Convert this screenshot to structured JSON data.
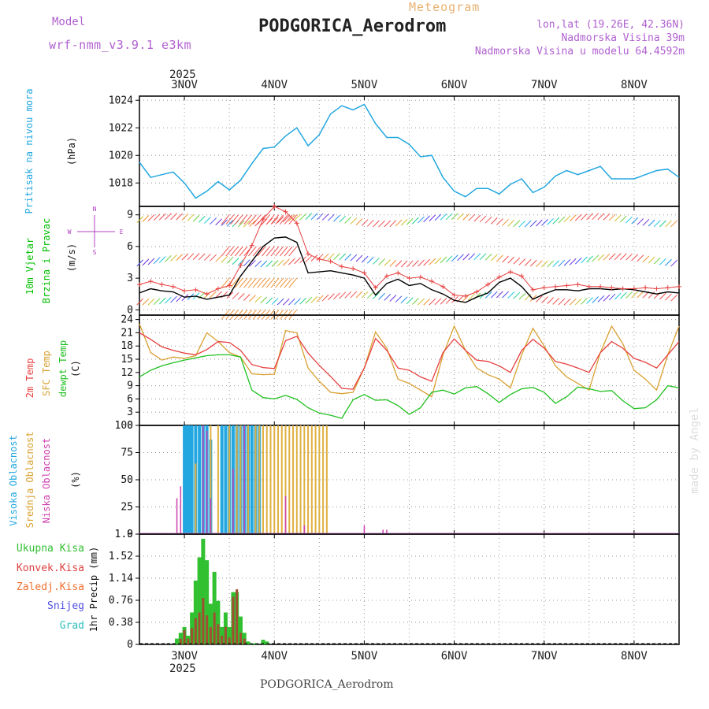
{
  "header": {
    "model_label": "Model",
    "model_name": "wrf-nmm_v3.9.1 e3km",
    "meteogram_label": "Meteogram",
    "station": "PODGORICA_Aerodrom",
    "lonlat": "lon,lat (19.26E, 42.36N)",
    "elevation": "Nadmorska Visina 39m",
    "model_elevation": "Nadmorska Visina u modelu 64.4592m",
    "footer_station": "PODGORICA_Aerodrom",
    "credit": "made by Angel"
  },
  "time_axis": {
    "year": "2025",
    "day_labels": [
      "3NOV",
      "4NOV",
      "5NOV",
      "6NOV",
      "7NOV",
      "8NOV"
    ],
    "x_range_hours": [
      -12,
      132
    ]
  },
  "colors": {
    "pressure": "#22a7e0",
    "wind_label": "#00c000",
    "speed_line": "#000000",
    "temp2m": "#e84040",
    "sfc": "#d9a030",
    "dewpt": "#20c020",
    "high": "#22a7e0",
    "mid": "#e0b040",
    "low": "#d040b0",
    "total": "#30c030",
    "conv": "#e04040",
    "frozen": "#f07030",
    "snow": "#5050e0",
    "grad": "#30c0c0"
  },
  "chart_data": [
    {
      "type": "line",
      "panel": "pressure",
      "ylabel_1": "Pritisak na nivou mora",
      "ylabel_2": "(hPa)",
      "ylim": [
        1016.3,
        1024.3
      ],
      "ticks": [
        1018,
        1020,
        1022,
        1024
      ],
      "series": [
        {
          "name": "Pritisak",
          "x": [
            -12,
            -9,
            -6,
            -3,
            0,
            3,
            6,
            9,
            12,
            15,
            18,
            21,
            24,
            27,
            30,
            33,
            36,
            39,
            42,
            45,
            48,
            51,
            54,
            57,
            60,
            63,
            66,
            69,
            72,
            75,
            78,
            81,
            84,
            87,
            90,
            93,
            96,
            99,
            102,
            105,
            108,
            111,
            114,
            117,
            120,
            123,
            126,
            129,
            132
          ],
          "values": [
            1019.5,
            1018.4,
            1018.6,
            1018.8,
            1018.0,
            1016.9,
            1017.4,
            1018.1,
            1017.5,
            1018.2,
            1019.4,
            1020.5,
            1020.6,
            1021.4,
            1022.0,
            1020.7,
            1021.5,
            1023.0,
            1023.6,
            1023.3,
            1023.7,
            1022.3,
            1021.3,
            1021.3,
            1020.8,
            1019.9,
            1020.0,
            1018.4,
            1017.4,
            1017.0,
            1017.6,
            1017.6,
            1017.2,
            1017.9,
            1018.3,
            1017.3,
            1017.7,
            1018.5,
            1018.9,
            1018.6,
            1018.9,
            1019.2,
            1018.3,
            1018.3,
            1018.3,
            1018.6,
            1018.9,
            1019.0,
            1018.4
          ]
        }
      ]
    },
    {
      "type": "line",
      "panel": "wind",
      "ylabel_1": "10m Vjetar",
      "ylabel_2": "Brzina i Pravac",
      "ylabel_3": "(m/s)",
      "compass": {
        "n": "N",
        "s": "S",
        "e": "E",
        "w": "W"
      },
      "ylim": [
        -0.5,
        9.8
      ],
      "ticks": [
        0,
        3,
        6,
        9
      ],
      "series": [
        {
          "name": "Brzina",
          "x": [
            -12,
            -9,
            -6,
            -3,
            0,
            3,
            6,
            9,
            12,
            15,
            18,
            21,
            24,
            27,
            30,
            33,
            36,
            39,
            42,
            45,
            48,
            51,
            54,
            57,
            60,
            63,
            66,
            69,
            72,
            75,
            78,
            81,
            84,
            87,
            90,
            93,
            96,
            99,
            102,
            105,
            108,
            111,
            114,
            117,
            120,
            123,
            126,
            129,
            132
          ],
          "values": [
            1.6,
            2.0,
            1.8,
            1.7,
            1.2,
            1.3,
            1.0,
            1.2,
            1.4,
            3.2,
            4.6,
            6.0,
            6.8,
            6.9,
            6.4,
            3.5,
            3.6,
            3.7,
            3.5,
            3.3,
            3.0,
            1.4,
            2.5,
            2.9,
            2.3,
            2.5,
            1.9,
            1.5,
            0.9,
            0.7,
            1.2,
            1.6,
            2.6,
            3.0,
            2.2,
            1.0,
            1.5,
            1.9,
            1.9,
            1.8,
            2.0,
            2.0,
            1.9,
            2.0,
            1.9,
            1.7,
            1.5,
            1.7,
            1.6
          ]
        },
        {
          "name": "Udari",
          "x": [
            -12,
            -9,
            -6,
            -3,
            0,
            3,
            6,
            9,
            12,
            15,
            18,
            21,
            24,
            27,
            30,
            33,
            36,
            39,
            42,
            45,
            48,
            51,
            54,
            57,
            60,
            63,
            66,
            69,
            72,
            75,
            78,
            81,
            84,
            87,
            90,
            93,
            96,
            99,
            102,
            105,
            108,
            111,
            114,
            117,
            120,
            123,
            126,
            129,
            132
          ],
          "values": [
            2.4,
            2.7,
            2.4,
            2.2,
            1.8,
            1.9,
            1.5,
            2.0,
            2.3,
            4.2,
            6.1,
            8.6,
            9.8,
            9.3,
            8.2,
            5.3,
            4.8,
            4.6,
            4.1,
            3.9,
            3.5,
            2.1,
            3.2,
            3.5,
            3.0,
            3.1,
            2.7,
            2.2,
            1.4,
            1.3,
            1.7,
            2.4,
            3.1,
            3.6,
            3.2,
            1.9,
            2.1,
            2.2,
            2.3,
            2.4,
            2.2,
            2.2,
            2.1,
            2.0,
            2.0,
            2.1,
            2.0,
            2.1,
            2.2
          ]
        }
      ]
    },
    {
      "type": "line",
      "panel": "temperature",
      "ylabel_1": "2m Temp",
      "ylabel_2": "SFC Temp",
      "ylabel_3": "dewpt Temp",
      "ylabel_4": "(C)",
      "ylim": [
        0,
        25
      ],
      "ticks": [
        0,
        3,
        6,
        9,
        12,
        15,
        18,
        21,
        24
      ],
      "series": [
        {
          "name": "2m Temp",
          "x": [
            -12,
            -9,
            -6,
            -3,
            0,
            3,
            6,
            9,
            12,
            15,
            18,
            21,
            24,
            27,
            30,
            33,
            36,
            39,
            42,
            45,
            48,
            51,
            54,
            57,
            60,
            63,
            66,
            69,
            72,
            75,
            78,
            81,
            84,
            87,
            90,
            93,
            96,
            99,
            102,
            105,
            108,
            111,
            114,
            117,
            120,
            123,
            126,
            129,
            132
          ],
          "values": [
            21.0,
            19.5,
            17.8,
            17.0,
            16.4,
            16.0,
            17.2,
            19.0,
            18.8,
            17.0,
            13.8,
            13.1,
            12.9,
            19.2,
            20.2,
            16.4,
            13.6,
            11.1,
            8.4,
            8.2,
            13.0,
            19.7,
            17.0,
            13.0,
            12.5,
            11.0,
            10.0,
            16.5,
            19.6,
            17.0,
            14.8,
            14.5,
            13.5,
            12.0,
            17.0,
            19.5,
            17.5,
            14.5,
            13.9,
            13.0,
            12.0,
            16.5,
            19.0,
            17.5,
            15.2,
            14.3,
            13.0,
            16.0,
            19.0
          ]
        },
        {
          "name": "SFC Temp",
          "x": [
            -12,
            -9,
            -6,
            -3,
            0,
            3,
            6,
            9,
            12,
            15,
            18,
            21,
            24,
            27,
            30,
            33,
            36,
            39,
            42,
            45,
            48,
            51,
            54,
            57,
            60,
            63,
            66,
            69,
            72,
            75,
            78,
            81,
            84,
            87,
            90,
            93,
            96,
            99,
            102,
            105,
            108,
            111,
            114,
            117,
            120,
            123,
            126,
            129,
            132
          ],
          "values": [
            23.0,
            16.5,
            14.8,
            15.5,
            15.2,
            15.8,
            21.0,
            19.0,
            16.5,
            15.5,
            11.7,
            11.5,
            11.6,
            21.5,
            21.0,
            13.0,
            10.0,
            7.5,
            7.2,
            7.5,
            13.0,
            21.2,
            17.5,
            10.5,
            9.5,
            8.0,
            6.5,
            16.0,
            22.5,
            17.0,
            13.0,
            11.5,
            10.5,
            8.5,
            16.0,
            22.0,
            18.0,
            13.5,
            11.0,
            9.5,
            8.0,
            16.5,
            22.5,
            18.5,
            12.5,
            10.5,
            8.0,
            16.0,
            22.5
          ]
        },
        {
          "name": "dewpt Temp",
          "x": [
            -12,
            -9,
            -6,
            -3,
            0,
            3,
            6,
            9,
            12,
            15,
            18,
            21,
            24,
            27,
            30,
            33,
            36,
            39,
            42,
            45,
            48,
            51,
            54,
            57,
            60,
            63,
            66,
            69,
            72,
            75,
            78,
            81,
            84,
            87,
            90,
            93,
            96,
            99,
            102,
            105,
            108,
            111,
            114,
            117,
            120,
            123,
            126,
            129,
            132
          ],
          "values": [
            11.0,
            12.5,
            13.5,
            14.2,
            14.8,
            15.3,
            15.8,
            16.0,
            16.0,
            15.5,
            8.0,
            6.3,
            6.0,
            6.8,
            5.9,
            4.0,
            2.8,
            2.3,
            1.6,
            5.8,
            7.0,
            5.7,
            5.8,
            4.5,
            2.5,
            4.0,
            7.5,
            8.0,
            7.1,
            8.5,
            8.8,
            7.2,
            5.2,
            7.0,
            8.3,
            8.6,
            7.5,
            5.0,
            6.5,
            8.7,
            8.3,
            7.7,
            7.9,
            5.6,
            3.8,
            4.0,
            5.8,
            9.0,
            8.5
          ]
        }
      ]
    },
    {
      "type": "bar",
      "panel": "cloud",
      "ylabel_1": "Visoka Oblacnost",
      "ylabel_2": "Srednja Oblacnost",
      "ylabel_3": "Niska Oblacnost",
      "ylabel_4": "(%)",
      "ylim": [
        0,
        100
      ],
      "ticks": [
        0,
        25,
        50,
        75,
        100
      ],
      "series": [
        {
          "name": "Visoka",
          "x": [
            0,
            0.5,
            1,
            1.5,
            2,
            3,
            4,
            5,
            6,
            7,
            10,
            11,
            12,
            13,
            14,
            15,
            16,
            17,
            18,
            19,
            20
          ],
          "values": [
            100,
            100,
            100,
            100,
            100,
            100,
            100,
            100,
            100,
            87,
            100,
            100,
            100,
            100,
            100,
            100,
            100,
            100,
            100,
            100,
            100
          ]
        },
        {
          "name": "Srednja",
          "x": [
            3,
            7,
            9,
            12,
            14,
            15,
            17,
            19,
            20,
            21,
            22,
            23,
            24,
            25,
            26,
            27,
            28,
            29,
            30,
            31,
            32,
            33,
            34,
            35,
            36,
            37,
            38
          ],
          "values": [
            65,
            100,
            100,
            100,
            100,
            100,
            100,
            100,
            100,
            100,
            100,
            100,
            100,
            100,
            100,
            100,
            100,
            100,
            100,
            100,
            100,
            100,
            100,
            100,
            100,
            100,
            100
          ]
        },
        {
          "name": "Niska",
          "x": [
            -2,
            -1,
            5,
            6,
            7,
            13,
            16,
            27,
            32,
            48,
            53,
            54
          ],
          "values": [
            33,
            44,
            100,
            95,
            33,
            60,
            100,
            35,
            8,
            8,
            4,
            4
          ]
        }
      ]
    },
    {
      "type": "bar",
      "panel": "precipitation",
      "ylabel_1": "1hr Precip (mm)",
      "legend": [
        "Ukupna Kisa",
        "Konvek.Kisa",
        "Zaledj.Kisa",
        "Snijeg",
        "Grad"
      ],
      "ylim": [
        0,
        1.9
      ],
      "ticks": [
        "0",
        "0.38",
        "0.76",
        "1.14",
        "1.52",
        "1.9"
      ],
      "series": [
        {
          "name": "Ukupna Kisa",
          "x": [
            -2,
            -1,
            0,
            1,
            2,
            3,
            4,
            5,
            6,
            7,
            8,
            9,
            10,
            11,
            12,
            13,
            14,
            15,
            16,
            17,
            18,
            19,
            21,
            22
          ],
          "values": [
            0.1,
            0.2,
            0.3,
            0.15,
            0.55,
            1.1,
            1.5,
            1.82,
            1.45,
            0.7,
            1.25,
            0.75,
            0.3,
            0.55,
            0.3,
            0.9,
            0.9,
            0.48,
            0.2,
            0.05,
            0.02,
            0.02,
            0.08,
            0.05
          ]
        },
        {
          "name": "Konvek.Kisa",
          "x": [
            -1,
            0,
            1,
            2,
            3,
            4,
            5,
            6,
            7,
            8,
            9,
            10,
            11,
            12,
            13,
            14,
            15,
            16
          ],
          "values": [
            0.1,
            0.25,
            0.1,
            0.28,
            0.45,
            0.55,
            0.8,
            0.5,
            0.3,
            0.55,
            0.35,
            0.15,
            0.3,
            0.12,
            0.82,
            0.95,
            0.2,
            0.1
          ]
        }
      ]
    }
  ]
}
